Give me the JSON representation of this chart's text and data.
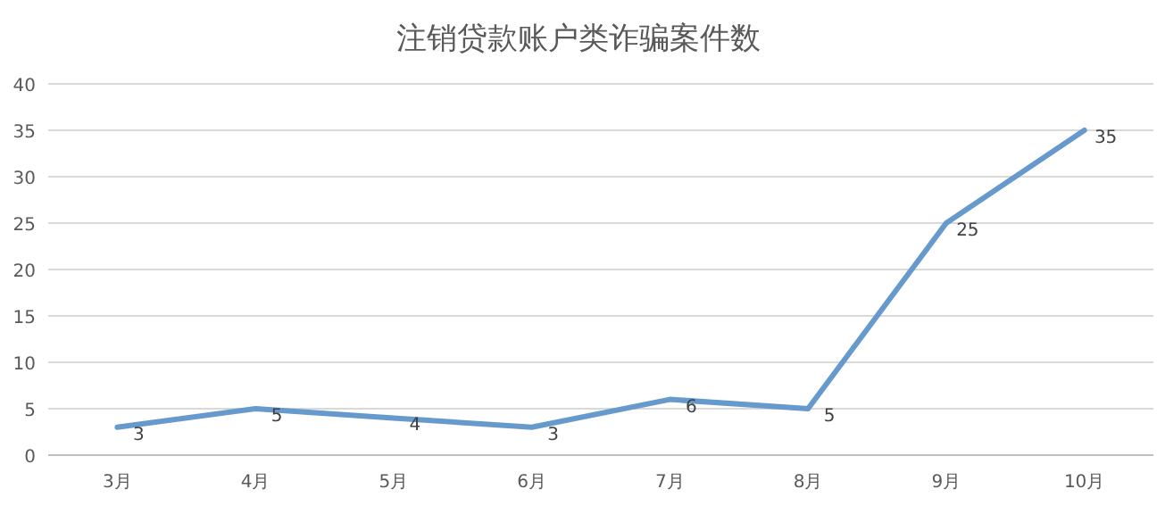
{
  "chart_data": {
    "type": "line",
    "title": "注销贷款账户类诈骗案件数",
    "categories": [
      "3月",
      "4月",
      "5月",
      "6月",
      "7月",
      "8月",
      "9月",
      "10月"
    ],
    "values": [
      3,
      5,
      4,
      3,
      6,
      5,
      25,
      35
    ],
    "color": "#6699cc",
    "ylim": [
      0,
      40
    ],
    "yticks": [
      0,
      5,
      10,
      15,
      20,
      25,
      30,
      35,
      40
    ],
    "grid": "y",
    "data_labels": true
  }
}
